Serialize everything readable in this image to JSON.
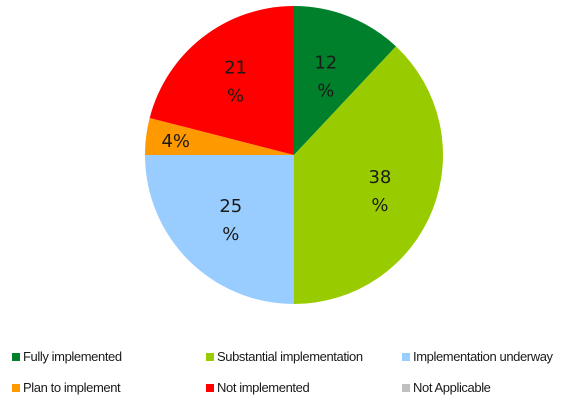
{
  "chart_data": {
    "type": "pie",
    "start_angle": "12 o'clock",
    "direction": "clockwise",
    "slices": [
      {
        "name": "Fully implemented",
        "value": 12,
        "label_line1": "12",
        "label_line2": "%",
        "color": "#00802b"
      },
      {
        "name": "Substantial implementation",
        "value": 38,
        "label_line1": "38",
        "label_line2": "%",
        "color": "#99cc00"
      },
      {
        "name": "Implementation underway",
        "value": 25,
        "label_line1": "25",
        "label_line2": "%",
        "color": "#99ccff"
      },
      {
        "name": "Plan to implement",
        "value": 4,
        "label_line1": "4%",
        "label_line2": "",
        "color": "#ff9900"
      },
      {
        "name": "Not implemented",
        "value": 21,
        "label_line1": "21",
        "label_line2": "%",
        "color": "#ff0000"
      },
      {
        "name": "Not Applicable",
        "value": 0,
        "label_line1": "",
        "label_line2": "",
        "color": "#c0c0c0"
      }
    ],
    "legend": {
      "placement": "bottom",
      "entries": [
        {
          "label": "Fully implemented",
          "color": "#00802b"
        },
        {
          "label": "Substantial implementation",
          "color": "#99cc00"
        },
        {
          "label": "Implementation underway",
          "color": "#99ccff"
        },
        {
          "label": "Plan to implement",
          "color": "#ff9900"
        },
        {
          "label": "Not implemented",
          "color": "#ff0000"
        },
        {
          "label": "Not Applicable",
          "color": "#c0c0c0"
        }
      ]
    }
  }
}
